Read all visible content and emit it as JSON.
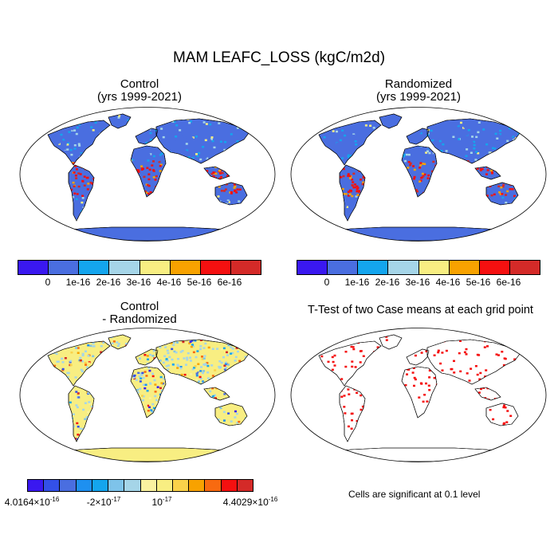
{
  "title": "MAM LEAFC_LOSS (kgC/m2d)",
  "panels": {
    "control": {
      "title_line1": "Control",
      "title_line2": "(yrs 1999-2021)"
    },
    "randomized": {
      "title_line1": "Randomized",
      "title_line2": "(yrs 1999-2021)"
    },
    "difference": {
      "title_line1": "Control",
      "title_line2": "- Randomized"
    },
    "ttest": {
      "title": "T-Test of two Case means at each grid point",
      "note": "Cells are significant at 0.1 level"
    }
  },
  "colorbar_main": {
    "colors": [
      "#3a18f0",
      "#4a6ee0",
      "#14a5ee",
      "#a5d5e8",
      "#f8ee82",
      "#f8a200",
      "#f51010",
      "#d42a28"
    ],
    "labels": [
      "0",
      "1e-16",
      "2e-16",
      "3e-16",
      "4e-16",
      "5e-16",
      "6e-16"
    ]
  },
  "colorbar_diff": {
    "colors": [
      "#3a18f0",
      "#3350e8",
      "#4a6ee0",
      "#1e90f0",
      "#14a5ee",
      "#7ec3ea",
      "#a5d5e8",
      "#faf2a0",
      "#f8ee82",
      "#fad24a",
      "#f8a200",
      "#f86a10",
      "#f51010",
      "#d42a28"
    ],
    "label_min": "4.0164×10",
    "label_min_exp": "-16",
    "label_mid1": "-2×10",
    "label_mid1_exp": "-17",
    "label_mid2": "10",
    "label_mid2_exp": "-17",
    "label_max": "4.4029×10",
    "label_max_exp": "-16"
  },
  "map_colors": {
    "ocean": "#ffffff",
    "land_low": "#4a6ee0",
    "land_mid": "#14a5ee",
    "land_high": "#f51010",
    "land_diff": "#f8ee82",
    "signif": "#f51010"
  }
}
